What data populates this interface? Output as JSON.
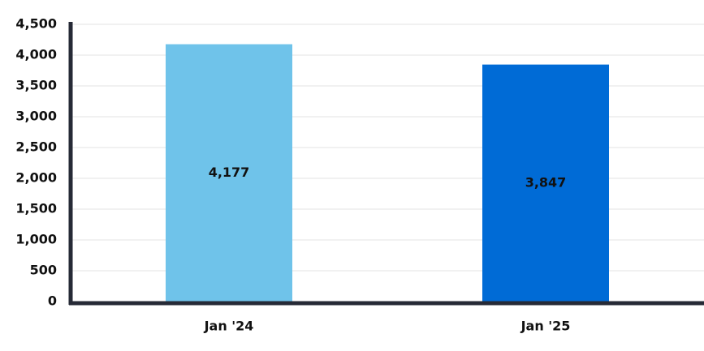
{
  "chart_data": {
    "type": "bar",
    "categories": [
      "Jan '24",
      "Jan '25"
    ],
    "values": [
      4177,
      3847
    ],
    "value_labels": [
      "4,177",
      "3,847"
    ],
    "colors": [
      "#6fc3ea",
      "#006bd6"
    ],
    "ylim": [
      0,
      4500
    ],
    "yticks": [
      0,
      500,
      {
        "value": 1000,
        "label": "1,000"
      },
      {
        "value": 1500,
        "label": "1,500"
      },
      {
        "value": 2000,
        "label": "2,000"
      },
      {
        "value": 2500,
        "label": "2,500"
      },
      {
        "value": 3000,
        "label": "3,000"
      },
      {
        "value": 3500,
        "label": "3,500"
      },
      {
        "value": 4000,
        "label": "4,000"
      },
      {
        "value": 4500,
        "label": "4,500"
      }
    ],
    "grid": true
  }
}
